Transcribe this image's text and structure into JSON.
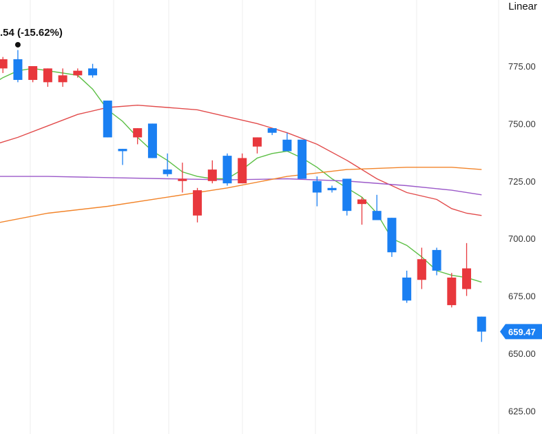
{
  "scale_mode": "Linear",
  "change_label": ".54 (-15.62%)",
  "colors": {
    "up": "#e8383d",
    "down": "#1a7ff2",
    "ma_green": "#5cbf45",
    "ma_red": "#e24b4b",
    "ma_purple": "#9b59c9",
    "ma_orange": "#f2842a",
    "price_tag": "#1a7ff2",
    "grid": "#eeeeee"
  },
  "chart_data": {
    "type": "candlestick",
    "y_axis": {
      "position": "right",
      "ticks": [
        775,
        750,
        725,
        700,
        675,
        650,
        625
      ],
      "ylim": [
        620,
        800
      ]
    },
    "last_price": "659.47",
    "candles": [
      {
        "x": 1,
        "open": 774,
        "high": 779,
        "low": 772,
        "close": 778,
        "dir": "up"
      },
      {
        "x": 2,
        "open": 778,
        "high": 782,
        "low": 768,
        "close": 769,
        "dir": "down"
      },
      {
        "x": 3,
        "open": 769,
        "high": 775,
        "low": 768,
        "close": 775,
        "dir": "up"
      },
      {
        "x": 4,
        "open": 768,
        "high": 774,
        "low": 766,
        "close": 774,
        "dir": "up"
      },
      {
        "x": 5,
        "open": 768,
        "high": 774,
        "low": 766,
        "close": 771,
        "dir": "up"
      },
      {
        "x": 6,
        "open": 771,
        "high": 774,
        "low": 770,
        "close": 773,
        "dir": "up"
      },
      {
        "x": 7,
        "open": 774,
        "high": 776,
        "low": 770,
        "close": 771,
        "dir": "down"
      },
      {
        "x": 8,
        "open": 760,
        "high": 760,
        "low": 744,
        "close": 744,
        "dir": "down"
      },
      {
        "x": 9,
        "open": 739,
        "high": 739,
        "low": 732,
        "close": 738,
        "dir": "down"
      },
      {
        "x": 10,
        "open": 744,
        "high": 748,
        "low": 741,
        "close": 748,
        "dir": "up"
      },
      {
        "x": 11,
        "open": 750,
        "high": 750,
        "low": 735,
        "close": 735,
        "dir": "down"
      },
      {
        "x": 12,
        "open": 730,
        "high": 737,
        "low": 727,
        "close": 728,
        "dir": "down"
      },
      {
        "x": 13,
        "open": 725,
        "high": 733,
        "low": 720,
        "close": 726,
        "dir": "up"
      },
      {
        "x": 14,
        "open": 710,
        "high": 722,
        "low": 707,
        "close": 721,
        "dir": "up"
      },
      {
        "x": 15,
        "open": 725,
        "high": 734,
        "low": 724,
        "close": 730,
        "dir": "up"
      },
      {
        "x": 16,
        "open": 736,
        "high": 737,
        "low": 723,
        "close": 724,
        "dir": "down"
      },
      {
        "x": 17,
        "open": 724,
        "high": 737,
        "low": 724,
        "close": 735,
        "dir": "up"
      },
      {
        "x": 18,
        "open": 740,
        "high": 744,
        "low": 737,
        "close": 744,
        "dir": "up"
      },
      {
        "x": 19,
        "open": 748,
        "high": 748,
        "low": 745,
        "close": 746,
        "dir": "down"
      },
      {
        "x": 20,
        "open": 743,
        "high": 746,
        "low": 738,
        "close": 738,
        "dir": "down"
      },
      {
        "x": 21,
        "open": 743,
        "high": 743,
        "low": 726,
        "close": 726,
        "dir": "down"
      },
      {
        "x": 22,
        "open": 725,
        "high": 727,
        "low": 714,
        "close": 720,
        "dir": "down"
      },
      {
        "x": 23,
        "open": 722,
        "high": 723,
        "low": 720,
        "close": 721,
        "dir": "down"
      },
      {
        "x": 24,
        "open": 726,
        "high": 726,
        "low": 710,
        "close": 712,
        "dir": "down"
      },
      {
        "x": 25,
        "open": 715,
        "high": 718,
        "low": 706,
        "close": 717,
        "dir": "up"
      },
      {
        "x": 26,
        "open": 712,
        "high": 719,
        "low": 708,
        "close": 708,
        "dir": "down"
      },
      {
        "x": 27,
        "open": 709,
        "high": 709,
        "low": 692,
        "close": 694,
        "dir": "down"
      },
      {
        "x": 28,
        "open": 683,
        "high": 686,
        "low": 672,
        "close": 673,
        "dir": "down"
      },
      {
        "x": 29,
        "open": 682,
        "high": 696,
        "low": 678,
        "close": 691,
        "dir": "up"
      },
      {
        "x": 30,
        "open": 695,
        "high": 696,
        "low": 684,
        "close": 686,
        "dir": "down"
      },
      {
        "x": 31,
        "open": 671,
        "high": 685,
        "low": 670,
        "close": 683,
        "dir": "up"
      },
      {
        "x": 32,
        "open": 678,
        "high": 698,
        "low": 675,
        "close": 687,
        "dir": "up"
      },
      {
        "x": 33,
        "open": 666,
        "high": 666,
        "low": 655,
        "close": 659.47,
        "dir": "down"
      }
    ],
    "moving_averages": [
      {
        "color_key": "ma_green",
        "points": [
          [
            0,
            766
          ],
          [
            1,
            770
          ],
          [
            2,
            773
          ],
          [
            3,
            774
          ],
          [
            4,
            773
          ],
          [
            5,
            772
          ],
          [
            6,
            771
          ],
          [
            7,
            765
          ],
          [
            8,
            756
          ],
          [
            9,
            751
          ],
          [
            10,
            744
          ],
          [
            11,
            738
          ],
          [
            12,
            734
          ],
          [
            13,
            729
          ],
          [
            14,
            727
          ],
          [
            15,
            726
          ],
          [
            16,
            726
          ],
          [
            17,
            730
          ],
          [
            18,
            735
          ],
          [
            19,
            737
          ],
          [
            20,
            738
          ],
          [
            21,
            735
          ],
          [
            22,
            731
          ],
          [
            23,
            726
          ],
          [
            24,
            722
          ],
          [
            25,
            718
          ],
          [
            26,
            711
          ],
          [
            27,
            700
          ],
          [
            28,
            697
          ],
          [
            29,
            692
          ],
          [
            30,
            686
          ],
          [
            31,
            684
          ],
          [
            32,
            683
          ],
          [
            33,
            681
          ]
        ]
      },
      {
        "color_key": "ma_red",
        "points": [
          [
            0,
            740
          ],
          [
            2,
            744
          ],
          [
            4,
            749
          ],
          [
            6,
            754
          ],
          [
            8,
            757
          ],
          [
            10,
            758
          ],
          [
            12,
            757
          ],
          [
            14,
            756
          ],
          [
            16,
            753
          ],
          [
            18,
            750
          ],
          [
            20,
            746
          ],
          [
            22,
            741
          ],
          [
            24,
            734
          ],
          [
            26,
            726
          ],
          [
            28,
            720
          ],
          [
            30,
            717
          ],
          [
            31,
            713
          ],
          [
            32,
            711
          ],
          [
            33,
            710
          ]
        ]
      },
      {
        "color_key": "ma_purple",
        "points": [
          [
            0,
            727
          ],
          [
            4,
            727
          ],
          [
            8,
            726.5
          ],
          [
            12,
            726
          ],
          [
            16,
            725.5
          ],
          [
            20,
            726
          ],
          [
            24,
            725
          ],
          [
            28,
            723
          ],
          [
            31,
            721
          ],
          [
            33,
            719
          ]
        ]
      },
      {
        "color_key": "ma_orange",
        "points": [
          [
            0,
            706
          ],
          [
            4,
            711
          ],
          [
            8,
            714
          ],
          [
            12,
            718
          ],
          [
            16,
            722
          ],
          [
            20,
            727
          ],
          [
            24,
            730
          ],
          [
            28,
            731
          ],
          [
            31,
            731
          ],
          [
            33,
            730
          ]
        ]
      }
    ],
    "marker": {
      "x": 2,
      "value": 784
    }
  }
}
